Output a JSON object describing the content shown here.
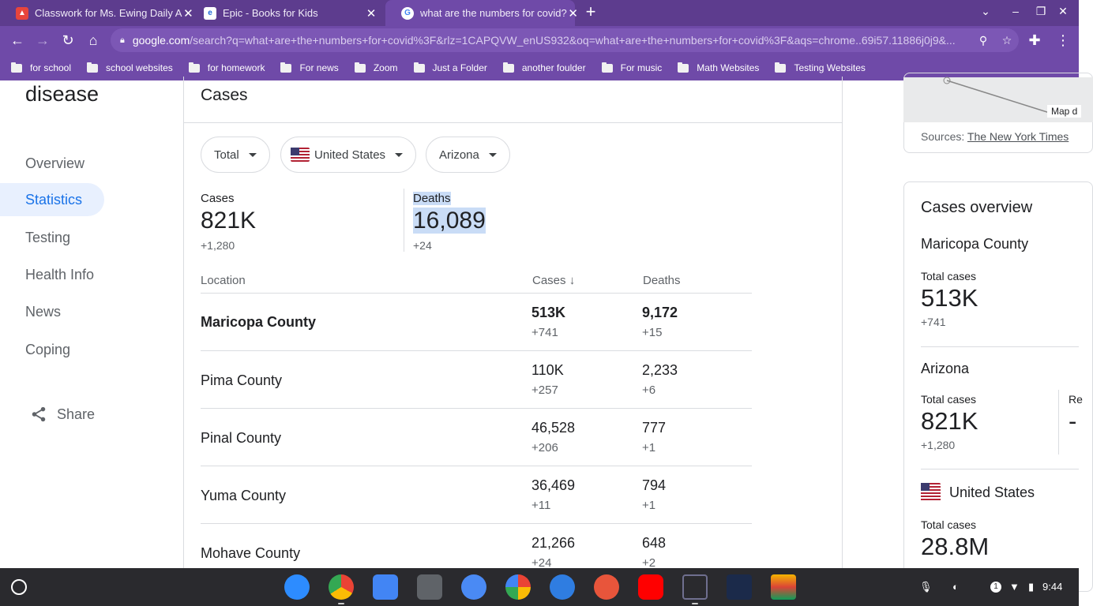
{
  "tabs": [
    {
      "title": "Classwork for Ms. Ewing Daily A",
      "icon": "classroom-icon"
    },
    {
      "title": "Epic - Books for Kids",
      "icon": "epic-icon"
    },
    {
      "title": "what are the numbers for covid?",
      "icon": "google-icon"
    }
  ],
  "address": {
    "host": "google.com",
    "path": "/search?q=what+are+the+numbers+for+covid%3F&rlz=1CAPQVW_enUS932&oq=what+are+the+numbers+for+covid%3F&aqs=chrome..69i57.11886j0j9&..."
  },
  "bookmarks": [
    "for school",
    "school websites",
    "for homework",
    "For news",
    "Zoom",
    "Just a Folder",
    "another foulder",
    "For music",
    "Math Websites",
    "Testing Websites"
  ],
  "sidebar": {
    "title": "disease",
    "items": [
      "Overview",
      "Statistics",
      "Testing",
      "Health Info",
      "News",
      "Coping"
    ],
    "share": "Share"
  },
  "main": {
    "heading": "Cases",
    "filters": {
      "type": "Total",
      "country": "United States",
      "region": "Arizona"
    },
    "summary": {
      "cases_label": "Cases",
      "cases": "821K",
      "cases_change": "+1,280",
      "deaths_label": "Deaths",
      "deaths": "16,089",
      "deaths_change": "+24"
    },
    "table": {
      "headers": {
        "location": "Location",
        "cases": "Cases",
        "deaths": "Deaths"
      },
      "rows": [
        {
          "location": "Maricopa County",
          "cases": "513K",
          "cases_change": "+741",
          "deaths": "9,172",
          "deaths_change": "+15"
        },
        {
          "location": "Pima County",
          "cases": "110K",
          "cases_change": "+257",
          "deaths": "2,233",
          "deaths_change": "+6"
        },
        {
          "location": "Pinal County",
          "cases": "46,528",
          "cases_change": "+206",
          "deaths": "777",
          "deaths_change": "+1"
        },
        {
          "location": "Yuma County",
          "cases": "36,469",
          "cases_change": "+11",
          "deaths": "794",
          "deaths_change": "+1"
        },
        {
          "location": "Mohave County",
          "cases": "21,266",
          "cases_change": "+24",
          "deaths": "648",
          "deaths_change": "+2"
        }
      ]
    }
  },
  "right": {
    "map_label": "Map d",
    "sources_label": "Sources:",
    "sources_link": "The New York Times",
    "overview_title": "Cases overview",
    "regions": [
      {
        "name": "Maricopa County",
        "label": "Total cases",
        "value": "513K",
        "change": "+741"
      },
      {
        "name": "Arizona",
        "label": "Total cases",
        "value": "821K",
        "change": "+1,280",
        "extra_label": "Re",
        "extra_value": "-"
      },
      {
        "name": "United States",
        "label": "Total cases",
        "value": "28.8M"
      }
    ]
  },
  "shelf": {
    "time": "9:44",
    "notif_count": "1"
  },
  "colors": {
    "tab_bg": "#5d3c8e",
    "toolbar_bg": "#6f4aa8",
    "accent": "#1a73e8",
    "highlight": "#c9dcf6"
  }
}
